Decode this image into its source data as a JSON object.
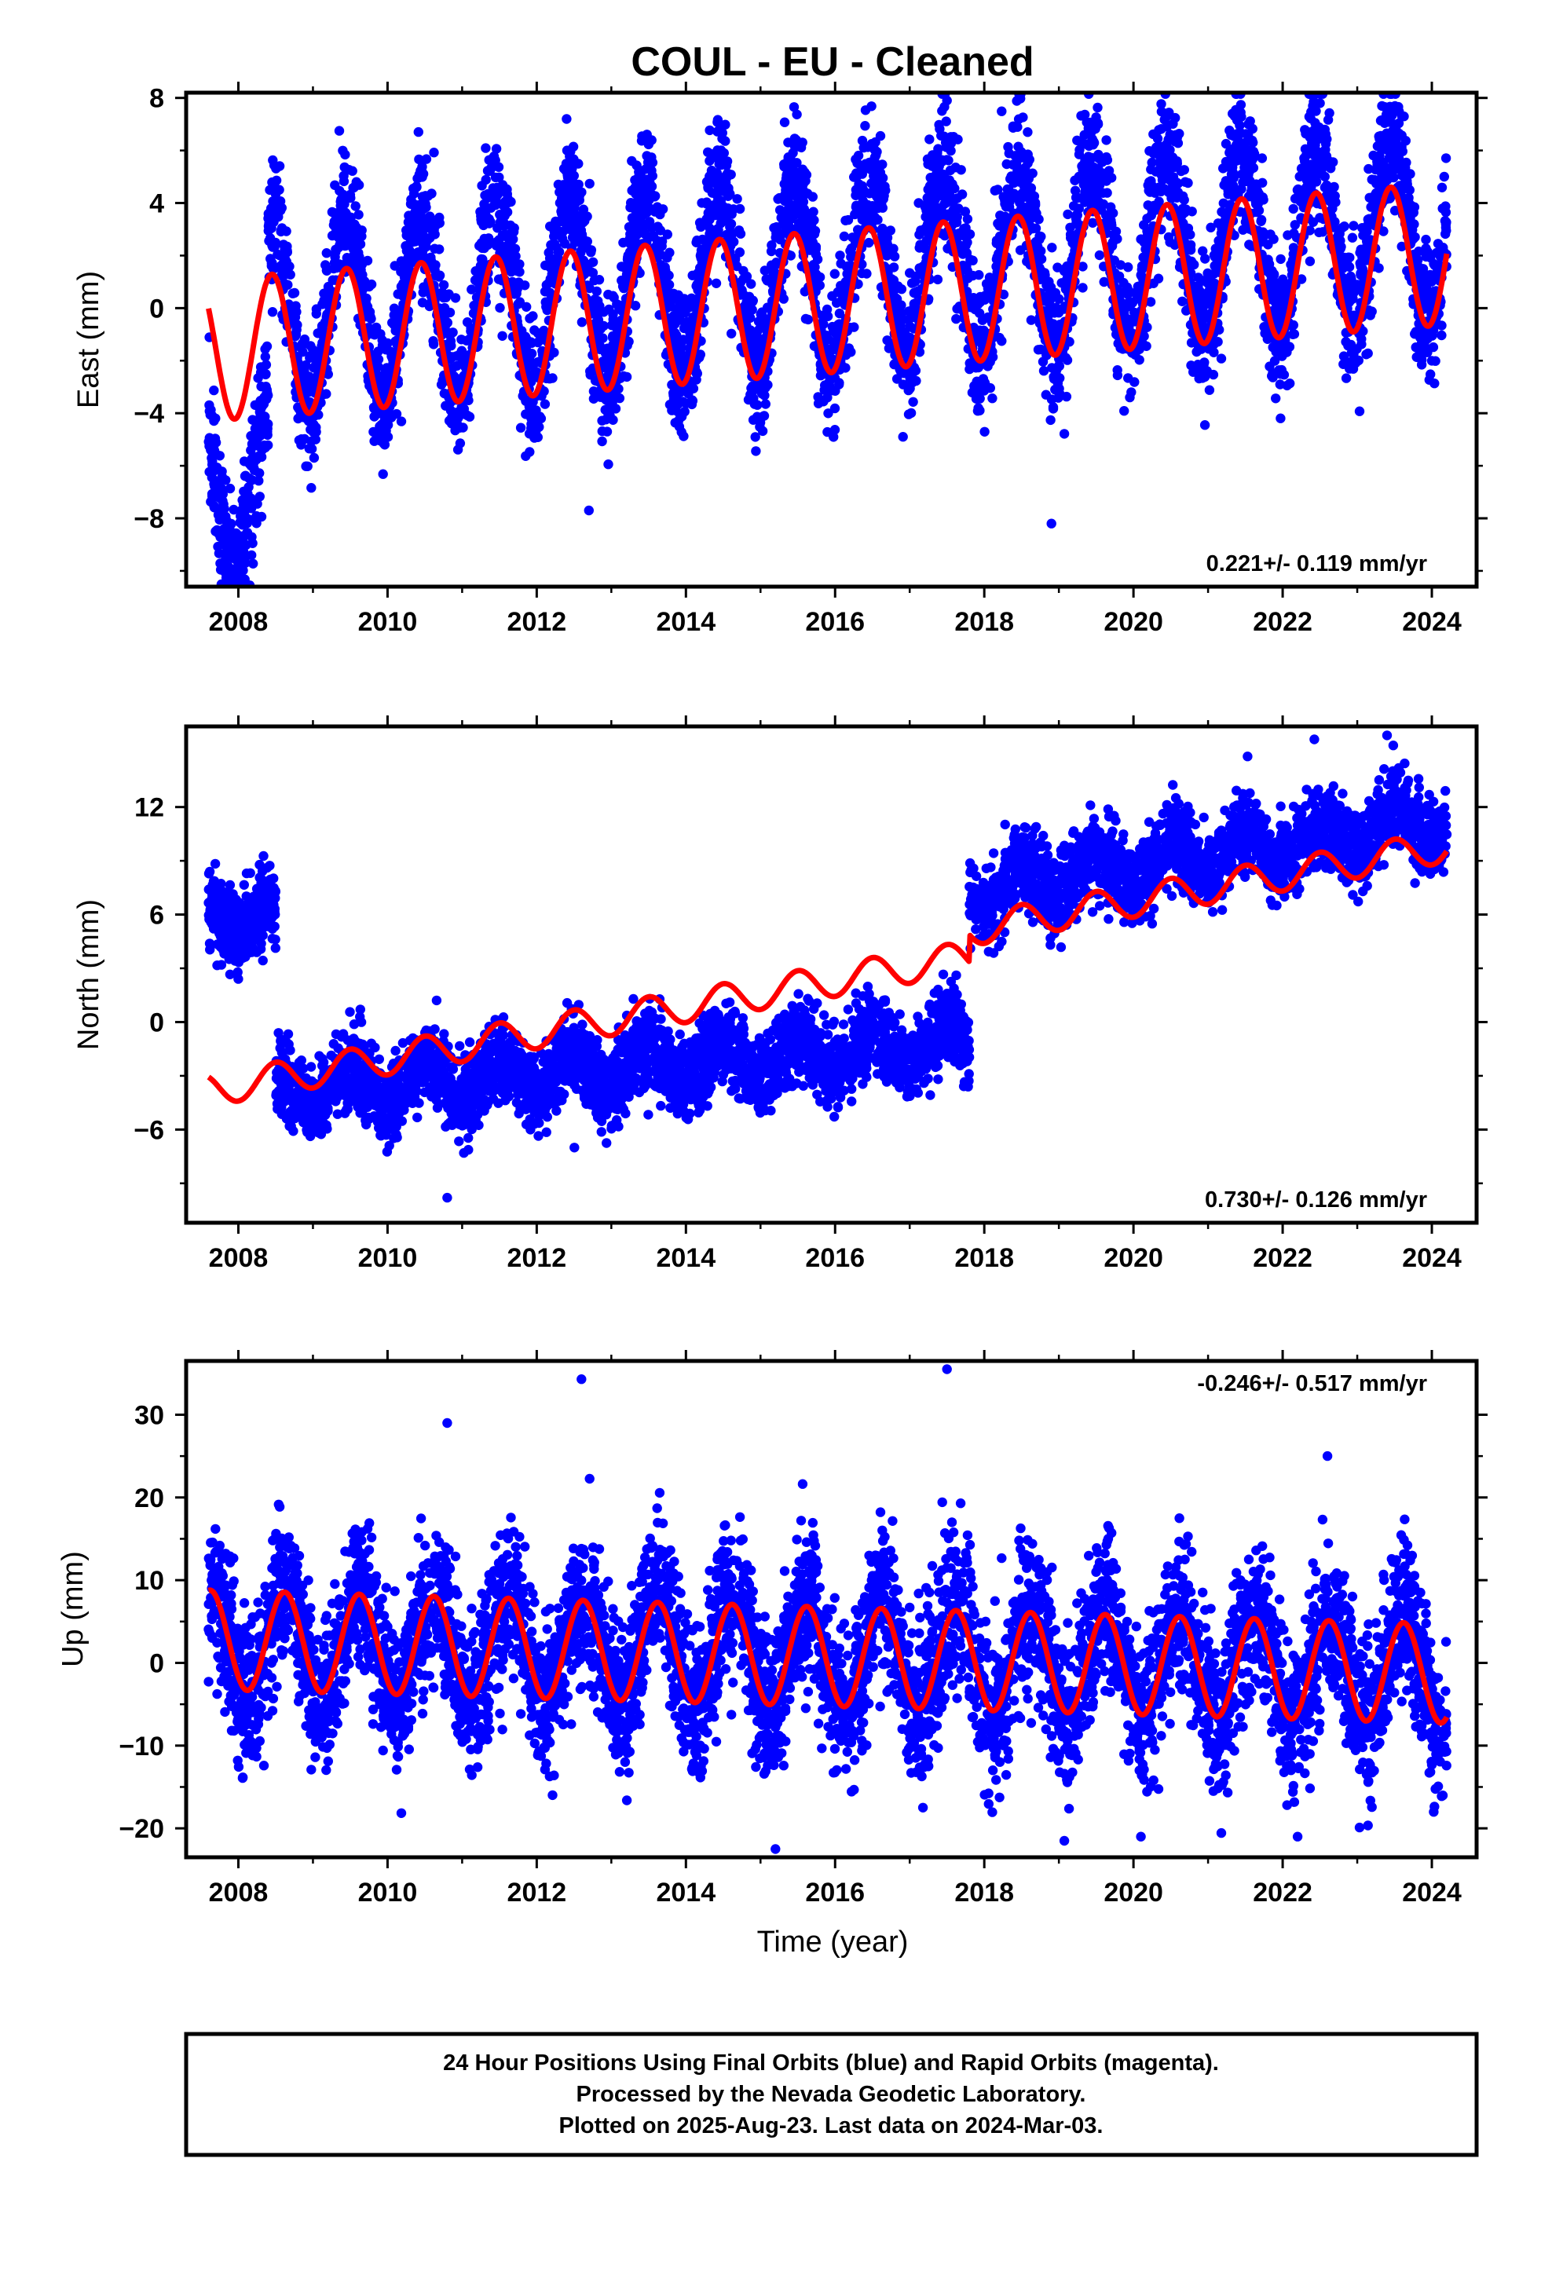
{
  "title": "COUL  - EU - Cleaned",
  "colors": {
    "data": "#0000ff",
    "model": "#ff0000",
    "frame": "#000000"
  },
  "chart_data": [
    {
      "type": "scatter",
      "ylabel": "East (mm)",
      "xlabel": "",
      "xlim": [
        2007.3,
        2024.6
      ],
      "ylim": [
        -10.6,
        8.2
      ],
      "xticks": [
        "2008",
        "2010",
        "2012",
        "2014",
        "2016",
        "2018",
        "2020",
        "2022",
        "2024"
      ],
      "yticks": [
        "8",
        "4",
        "0",
        "−4",
        "−8"
      ],
      "ytick_values": [
        8,
        4,
        0,
        -4,
        -8
      ],
      "rate": "0.221+/- 0.119 mm/yr",
      "rate_position": "bottom-right",
      "model_curve": {
        "start": 2007.6,
        "end": 2024.2,
        "offset": -1.6,
        "trend": 0.221,
        "amplitude": 2.7,
        "peak_phase": 0.45,
        "steps": []
      },
      "data_series": {
        "start": 2007.6,
        "end": 2024.2,
        "mean": -0.5,
        "trend": 0.221,
        "amplitude": 3.5,
        "noise": 1.3,
        "segments": [
          {
            "from": 2007.6,
            "to": 2008.4,
            "mean": -6.5
          }
        ],
        "points_per_year": 330,
        "outliers": [
          [
            2012.4,
            7.2
          ],
          [
            2012.7,
            -7.7
          ],
          [
            2017.5,
            7.9
          ],
          [
            2018.9,
            -8.2
          ],
          [
            2022.5,
            7.8
          ],
          [
            2023.6,
            7.3
          ]
        ]
      }
    },
    {
      "type": "scatter",
      "ylabel": "North (mm)",
      "xlabel": "",
      "xlim": [
        2007.3,
        2024.6
      ],
      "ylim": [
        -11.2,
        16.5
      ],
      "xticks": [
        "2008",
        "2010",
        "2012",
        "2014",
        "2016",
        "2018",
        "2020",
        "2022",
        "2024"
      ],
      "yticks": [
        "12",
        "6",
        "0",
        "−6"
      ],
      "ytick_values": [
        12,
        6,
        0,
        -6
      ],
      "rate": "0.730+/- 0.126 mm/yr",
      "rate_position": "bottom-right",
      "model_curve": {
        "start": 2007.6,
        "end": 2024.2,
        "offset": -3.8,
        "trend": 0.73,
        "amplitude": 0.9,
        "peak_phase": 0.5,
        "steps": [
          [
            2017.8,
            1.5
          ]
        ]
      },
      "data_series": {
        "start": 2007.6,
        "end": 2024.2,
        "mean": -4.2,
        "trend": 0.3,
        "amplitude": 1.0,
        "noise": 1.1,
        "segments": [
          {
            "from": 2007.6,
            "to": 2008.5,
            "mean": 5.8
          },
          {
            "from": 2017.8,
            "to": 2024.2,
            "mean": 7.4,
            "trend": 0.6
          }
        ],
        "points_per_year": 330,
        "outliers": [
          [
            2010.8,
            -9.8
          ],
          [
            2023.4,
            16.0
          ]
        ]
      }
    },
    {
      "type": "scatter",
      "ylabel": "Up (mm)",
      "xlabel": "Time (year)",
      "xlim": [
        2007.3,
        2024.6
      ],
      "ylim": [
        -23.5,
        36.5
      ],
      "xticks": [
        "2008",
        "2010",
        "2012",
        "2014",
        "2016",
        "2018",
        "2020",
        "2022",
        "2024"
      ],
      "yticks": [
        "30",
        "20",
        "10",
        "0",
        "−10",
        "−20"
      ],
      "ytick_values": [
        30,
        20,
        10,
        0,
        -10,
        -20
      ],
      "rate": "-0.246+/- 0.517 mm/yr",
      "rate_position": "top-right",
      "model_curve": {
        "start": 2007.6,
        "end": 2024.2,
        "offset": 2.8,
        "trend": -0.246,
        "amplitude": 6.0,
        "peak_phase": 0.62,
        "steps": []
      },
      "data_series": {
        "start": 2007.6,
        "end": 2024.2,
        "mean": 2.8,
        "trend": -0.246,
        "amplitude": 6.5,
        "noise": 4.6,
        "segments": [],
        "points_per_year": 330,
        "outliers": [
          [
            2012.6,
            34.3
          ],
          [
            2017.5,
            35.5
          ],
          [
            2010.8,
            29.0
          ],
          [
            2022.6,
            25.0
          ],
          [
            2015.2,
            -22.5
          ],
          [
            2022.2,
            -21.0
          ],
          [
            2020.1,
            -21.0
          ]
        ]
      }
    }
  ],
  "footer": {
    "line1": "24 Hour Positions Using Final Orbits (blue) and Rapid Orbits (magenta).",
    "line2": "Processed by the Nevada Geodetic Laboratory.",
    "line3": "Plotted on 2025-Aug-23. Last data on 2024-Mar-03."
  }
}
